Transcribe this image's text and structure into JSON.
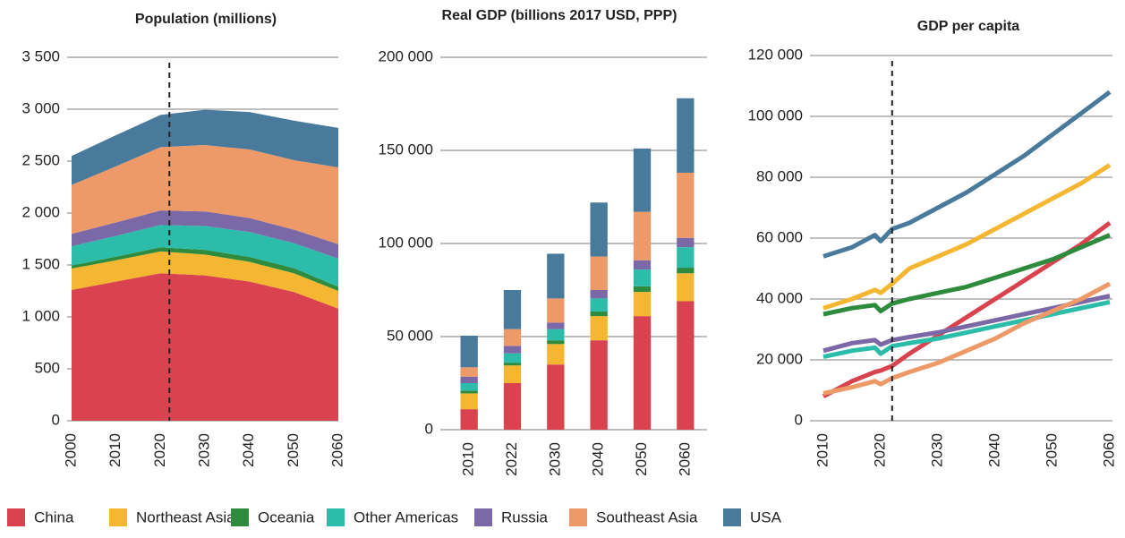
{
  "chart_data": [
    {
      "type": "area",
      "title": "Population (millions)",
      "x": [
        2000,
        2010,
        2020,
        2030,
        2040,
        2050,
        2060
      ],
      "xlim": [
        2000,
        2060
      ],
      "xticks": [
        2000,
        2010,
        2020,
        2030,
        2040,
        2050,
        2060
      ],
      "ylim": [
        0,
        3500
      ],
      "yticks": [
        0,
        500,
        {
          "value": 1000,
          "label": "1 000"
        },
        {
          "value": 1500,
          "label": "1 500"
        },
        {
          "value": 2000,
          "label": "2 000"
        },
        {
          "value": 2500,
          "label": "2 500"
        },
        {
          "value": 3000,
          "label": "3 000"
        },
        {
          "value": 3500,
          "label": "3 500"
        }
      ],
      "grid": true,
      "stacked": true,
      "vline": 2022,
      "series": [
        {
          "name": "China",
          "color": "#d9434f",
          "values": [
            1260,
            1340,
            1420,
            1400,
            1340,
            1240,
            1080
          ]
        },
        {
          "name": "Northeast Asia",
          "color": "#f5b731",
          "values": [
            205,
            205,
            210,
            200,
            190,
            180,
            170
          ]
        },
        {
          "name": "Oceania",
          "color": "#2e8b3e",
          "values": [
            30,
            35,
            40,
            45,
            48,
            50,
            40
          ]
        },
        {
          "name": "Other Americas",
          "color": "#2bbcaa",
          "values": [
            185,
            200,
            215,
            230,
            240,
            240,
            270
          ]
        },
        {
          "name": "Russia",
          "color": "#7b68a6",
          "values": [
            120,
            130,
            140,
            140,
            135,
            130,
            140
          ]
        },
        {
          "name": "Southeast Asia",
          "color": "#ee9a68",
          "values": [
            470,
            540,
            610,
            640,
            660,
            670,
            740
          ]
        },
        {
          "name": "USA",
          "color": "#4a7a9b",
          "values": [
            280,
            300,
            310,
            340,
            360,
            380,
            380
          ]
        }
      ]
    },
    {
      "type": "bar",
      "title": "Real GDP (billions 2017 USD, PPP)",
      "categories": [
        "2010",
        "2022",
        "2030",
        "2040",
        "2050",
        "2060"
      ],
      "ylim": [
        0,
        200000
      ],
      "yticks": [
        0,
        {
          "value": 50000,
          "label": "50 000"
        },
        {
          "value": 100000,
          "label": "100 000"
        },
        {
          "value": 150000,
          "label": "150 000"
        },
        {
          "value": 200000,
          "label": "200 000"
        }
      ],
      "grid": true,
      "stacked": true,
      "series": [
        {
          "name": "China",
          "color": "#d9434f",
          "values": [
            11000,
            25000,
            35000,
            48000,
            61000,
            69000
          ]
        },
        {
          "name": "Northeast Asia",
          "color": "#f5b731",
          "values": [
            8500,
            9500,
            11000,
            13000,
            13000,
            15000
          ]
        },
        {
          "name": "Oceania",
          "color": "#2e8b3e",
          "values": [
            1500,
            1500,
            2000,
            2500,
            3000,
            3000
          ]
        },
        {
          "name": "Other Americas",
          "color": "#2bbcaa",
          "values": [
            4000,
            5000,
            6000,
            7000,
            9000,
            11000
          ]
        },
        {
          "name": "Russia",
          "color": "#7b68a6",
          "values": [
            3500,
            4000,
            3500,
            4500,
            5000,
            5000
          ]
        },
        {
          "name": "Southeast Asia",
          "color": "#ee9a68",
          "values": [
            5000,
            9000,
            13000,
            18000,
            26000,
            35000
          ]
        },
        {
          "name": "USA",
          "color": "#4a7a9b",
          "values": [
            17000,
            21000,
            24000,
            29000,
            34000,
            40000
          ]
        }
      ]
    },
    {
      "type": "line",
      "title": "GDP per capita",
      "x": [
        2010,
        2015,
        2019,
        2020,
        2022,
        2025,
        2030,
        2035,
        2040,
        2045,
        2050,
        2055,
        2060
      ],
      "xlim": [
        2010,
        2060
      ],
      "xticks": [
        2010,
        2020,
        2030,
        2040,
        2050,
        2060
      ],
      "ylim": [
        0,
        120000
      ],
      "yticks": [
        0,
        {
          "value": 20000,
          "label": "20 000"
        },
        {
          "value": 40000,
          "label": "40 000"
        },
        {
          "value": 60000,
          "label": "60 000"
        },
        {
          "value": 80000,
          "label": "80 000"
        },
        {
          "value": 100000,
          "label": "100 000"
        },
        {
          "value": 120000,
          "label": "120 000"
        }
      ],
      "grid": true,
      "vline": 2022,
      "series": [
        {
          "name": "China",
          "color": "#d9434f",
          "values": [
            8000,
            13000,
            16000,
            16500,
            18000,
            22000,
            28000,
            34000,
            40000,
            46000,
            52000,
            58000,
            65000
          ]
        },
        {
          "name": "Northeast Asia",
          "color": "#f5b731",
          "values": [
            37000,
            40000,
            43000,
            42000,
            45000,
            50000,
            54000,
            58000,
            63000,
            68000,
            73000,
            78000,
            84000
          ]
        },
        {
          "name": "Oceania",
          "color": "#2e8b3e",
          "values": [
            35000,
            37000,
            38000,
            36000,
            38500,
            40000,
            42000,
            44000,
            47000,
            50000,
            53000,
            57000,
            61000
          ]
        },
        {
          "name": "Other Americas",
          "color": "#2bbcaa",
          "values": [
            21000,
            23000,
            24000,
            22000,
            24500,
            25500,
            27000,
            29000,
            31000,
            33000,
            35000,
            37000,
            39000
          ]
        },
        {
          "name": "Russia",
          "color": "#7b68a6",
          "values": [
            23000,
            25500,
            26500,
            25000,
            26500,
            27500,
            29000,
            31000,
            33000,
            35000,
            37000,
            39000,
            41000
          ]
        },
        {
          "name": "Southeast Asia",
          "color": "#ee9a68",
          "values": [
            9000,
            11000,
            13000,
            12000,
            14000,
            16000,
            19000,
            23000,
            27000,
            32000,
            36000,
            40000,
            45000
          ]
        },
        {
          "name": "USA",
          "color": "#4a7a9b",
          "values": [
            54000,
            57000,
            61000,
            59000,
            63000,
            65000,
            70000,
            75000,
            81000,
            87000,
            94000,
            101000,
            108000
          ]
        }
      ]
    }
  ]
}
